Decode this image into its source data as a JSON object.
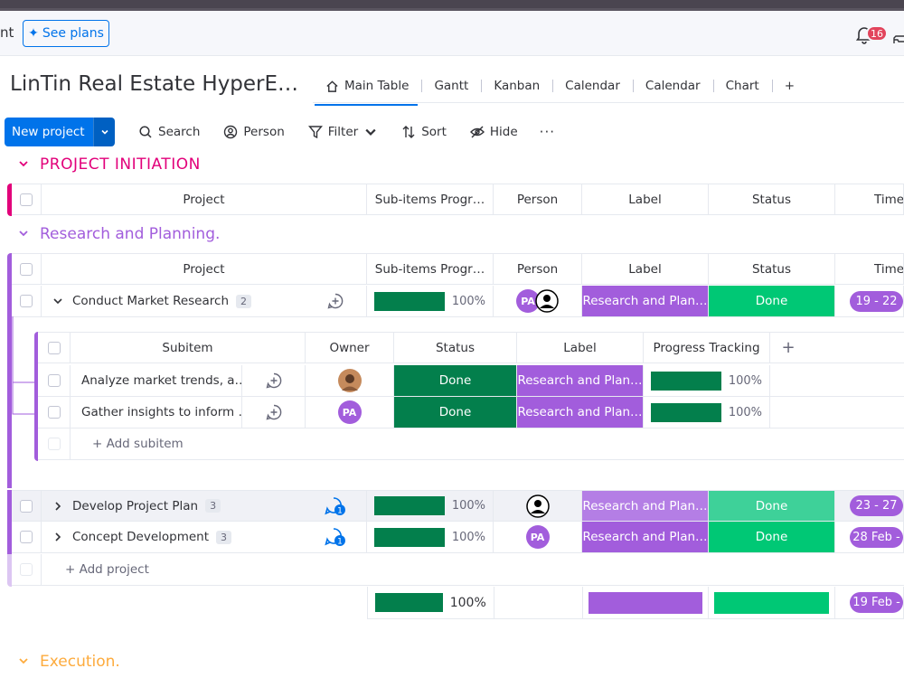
{
  "header": {
    "cut_text": "nt",
    "see_plans": "See plans",
    "notifications_count": "16"
  },
  "board": {
    "title": "LinTin Real Estate HyperE…",
    "views": [
      "Main Table",
      "Gantt",
      "Kanban",
      "Calendar",
      "Calendar",
      "Chart",
      "+"
    ]
  },
  "toolbar": {
    "new_project": "New project",
    "search": "Search",
    "person": "Person",
    "filter": "Filter",
    "sort": "Sort",
    "hide": "Hide",
    "more": "···"
  },
  "colors": {
    "accent": "#0073ea",
    "group_initiation": "#e2007a",
    "group_research": "#a25ddc",
    "group_execution": "#fdab3d",
    "done": "#00c875",
    "done_dark": "#037f4c"
  },
  "groups": {
    "initiation": {
      "title": "PROJECT INITIATION"
    },
    "research": {
      "title": "Research and Planning."
    },
    "execution": {
      "title": "Execution."
    }
  },
  "columns": {
    "project": "Project",
    "subitems_progress": "Sub-items Progr…",
    "person": "Person",
    "label": "Label",
    "status": "Status",
    "timeline": "Timel"
  },
  "subcolumns": {
    "subitem": "Subitem",
    "owner": "Owner",
    "status": "Status",
    "label": "Label",
    "progress": "Progress Tracking",
    "add": "+"
  },
  "rows": [
    {
      "name": "Conduct Market Research",
      "count": "2",
      "progress_value": 1.0,
      "progress": "100%",
      "person": "PA",
      "label": "Research and Plan…",
      "status": "Done",
      "timeline": "19 - 22"
    },
    {
      "name": "Develop Project Plan",
      "count": "3",
      "progress_value": 1.0,
      "progress": "100%",
      "label": "Research and Plan…",
      "status": "Done",
      "timeline": "23 - 27"
    },
    {
      "name": "Concept Development",
      "count": "3",
      "progress_value": 1.0,
      "progress": "100%",
      "person": "PA",
      "label": "Research and Plan…",
      "status": "Done",
      "timeline": "28 Feb -"
    }
  ],
  "subitems": [
    {
      "name": "Analyze market trends, a…",
      "status": "Done",
      "label": "Research and Plan…",
      "progress_value": 1.0,
      "progress": "100%"
    },
    {
      "name": "Gather insights to inform …",
      "owner": "PA",
      "status": "Done",
      "label": "Research and Plan…",
      "progress_value": 1.0,
      "progress": "100%"
    }
  ],
  "add_subitem": "+ Add subitem",
  "add_project": "+ Add project",
  "summary": {
    "progress_value": 1.0,
    "progress": "100%",
    "timeline": "19 Feb -"
  }
}
